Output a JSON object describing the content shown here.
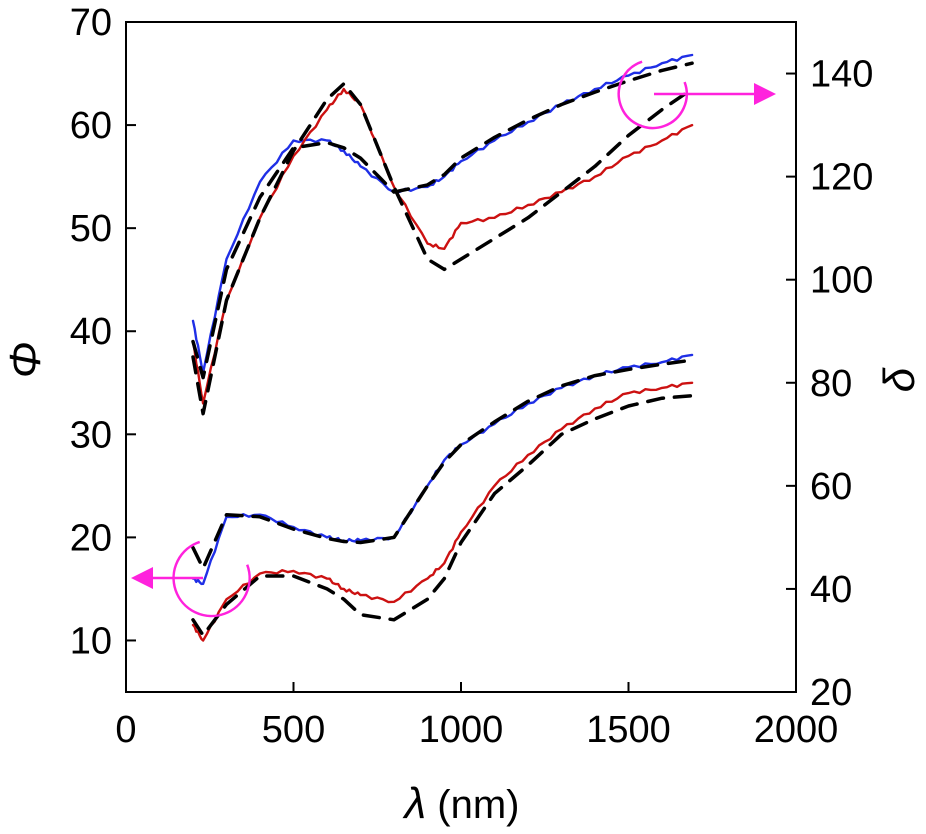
{
  "chart_data": {
    "type": "line",
    "title": "",
    "x": [
      200,
      230,
      300,
      400,
      500,
      600,
      650,
      700,
      800,
      900,
      950,
      1000,
      1100,
      1200,
      1300,
      1400,
      1500,
      1600,
      1690
    ],
    "xlabel": {
      "symbol": "λ",
      "unit": " (nm)"
    },
    "ylabel_left": "Φ",
    "ylabel_right": "δ",
    "xlim": [
      0,
      2000
    ],
    "ylim_left": [
      5,
      70
    ],
    "ylim_right": [
      20,
      150
    ],
    "xticks": [
      "0",
      "500",
      "1000",
      "1500",
      "2000"
    ],
    "yticks_left": [
      "10",
      "20",
      "30",
      "40",
      "50",
      "60",
      "70"
    ],
    "yticks_right": [
      "20",
      "40",
      "60",
      "80",
      "100",
      "120",
      "140"
    ],
    "series": [
      {
        "name": "Φ measured (blue)",
        "axis": "left",
        "color": "#1f2fe6",
        "values": [
          41,
          36,
          47,
          54.5,
          58.5,
          58.5,
          57.5,
          56,
          53.5,
          54,
          55,
          56.5,
          58.5,
          60.3,
          62,
          63.5,
          64.8,
          66,
          66.8
        ]
      },
      {
        "name": "Φ fit (black dashed)",
        "axis": "left",
        "color": "#000000",
        "dashed": true,
        "values": [
          39,
          35.5,
          46,
          53,
          57.8,
          58.3,
          57.8,
          56.8,
          53.5,
          54.2,
          55.2,
          56.8,
          58.8,
          60.5,
          62,
          63.2,
          64.3,
          65.3,
          66
        ]
      },
      {
        "name": "δ measured (red)",
        "axis": "right",
        "color": "#cc1111",
        "values": [
          88,
          76,
          96,
          112,
          124,
          133,
          137,
          134,
          118,
          107,
          106,
          111,
          112,
          114.5,
          117,
          120,
          124,
          127,
          130
        ]
      },
      {
        "name": "δ fit (black dashed)",
        "axis": "right",
        "color": "#000000",
        "dashed": true,
        "values": [
          85,
          74,
          96,
          112,
          125,
          135,
          138,
          134,
          118,
          104,
          102,
          104,
          108,
          112,
          117,
          122,
          128,
          133,
          137
        ]
      },
      {
        "name": "Φ measured (blue, lower)",
        "axis": "left",
        "color": "#1f2fe6",
        "values": [
          16,
          15.5,
          22,
          22.2,
          21,
          20,
          19.7,
          19.7,
          20,
          25,
          27.5,
          29,
          31,
          33,
          34.5,
          35.7,
          36.5,
          37,
          37.7
        ]
      },
      {
        "name": "Φ fit (black dashed, lower)",
        "axis": "left",
        "color": "#000000",
        "dashed": true,
        "values": [
          19,
          17,
          22.2,
          22,
          20.8,
          19.9,
          19.6,
          19.5,
          20,
          25,
          27.3,
          29,
          31.2,
          33.2,
          34.7,
          35.7,
          36.3,
          36.8,
          37.2
        ]
      },
      {
        "name": "δ measured (red, lower)",
        "axis": "right",
        "color": "#cc1111",
        "values": [
          33,
          30,
          38,
          43,
          43.5,
          42,
          40,
          38.8,
          37.5,
          42,
          45,
          51,
          60,
          66,
          71,
          75,
          78,
          79,
          80
        ]
      },
      {
        "name": "δ fit (black dashed, lower)",
        "axis": "right",
        "color": "#000000",
        "dashed": true,
        "values": [
          34,
          31,
          37,
          42.5,
          42.5,
          40,
          38,
          35,
          34,
          38,
          42,
          49,
          58.5,
          64,
          70,
          73,
          75.5,
          77,
          77.5
        ]
      }
    ],
    "annotations": [
      {
        "type": "arrow",
        "text": "",
        "points_to": "right axis (δ curves)",
        "color": "#ff22dd"
      },
      {
        "type": "arrow",
        "text": "",
        "points_to": "left axis (Φ curves)",
        "color": "#ff22dd"
      }
    ]
  }
}
